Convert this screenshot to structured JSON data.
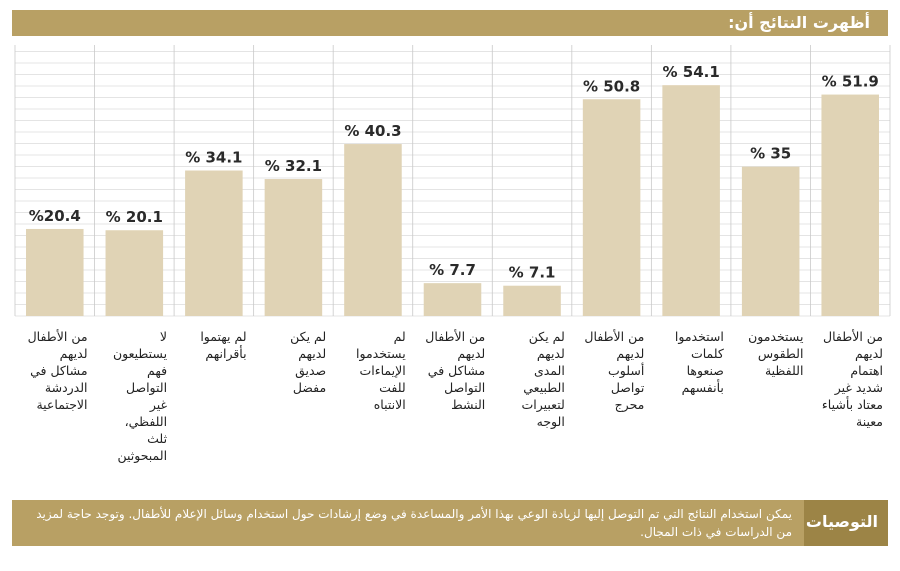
{
  "header": {
    "title": "أظهرت النتائج أن:"
  },
  "chart_data": {
    "type": "bar",
    "categories": [
      "من الأطفال لديهم مشاكل في الدردشة الاجتماعية",
      "لا يستطيعون فهم التواصل غير اللفظي، ثلث المبحوثين",
      "لم يهتموا بأقرانهم",
      "لم يكن لديهم صديق مفضل",
      "لم يستخدموا الإيماءات للفت الانتباه",
      "من الأطفال لديهم مشاكل في التواصل النشط",
      "لم يكن لديهم المدى الطبيعي لتعبيرات الوجه",
      "من الأطفال لديهم أسلوب تواصل محرج",
      "استخدموا كلمات صنعوها بأنفسهم",
      "يستخدمون الطقوس اللفظية",
      "من الأطفال لديهم اهتمام شديد غير معتاد بأشياء معينة"
    ],
    "values": [
      20.4,
      20.1,
      34.1,
      32.1,
      40.3,
      7.7,
      7.1,
      50.8,
      54.1,
      35,
      51.9
    ],
    "labels": [
      "%20.4",
      "% 20.1",
      "% 34.1",
      "% 32.1",
      "% 40.3",
      "% 7.7",
      "% 7.1",
      "% 50.8",
      "% 54.1",
      "% 35",
      "% 51.9"
    ],
    "ylim": [
      0,
      60
    ],
    "grid": true,
    "bar_color": "#e0d3b5",
    "grid_color": "#c9c9c9"
  },
  "recommendations": {
    "tag": "التوصيات",
    "text": "يمكن استخدام النتائج التي تم التوصل إليها لزيادة الوعي بهذا الأمر والمساعدة في وضع إرشادات حول استخدام وسائل الإعلام للأطفال. وتوجد حاجة لمزيد من الدراسات في ذات المجال."
  },
  "colors": {
    "accent": "#b8a064",
    "accent_dark": "#9c8446"
  }
}
